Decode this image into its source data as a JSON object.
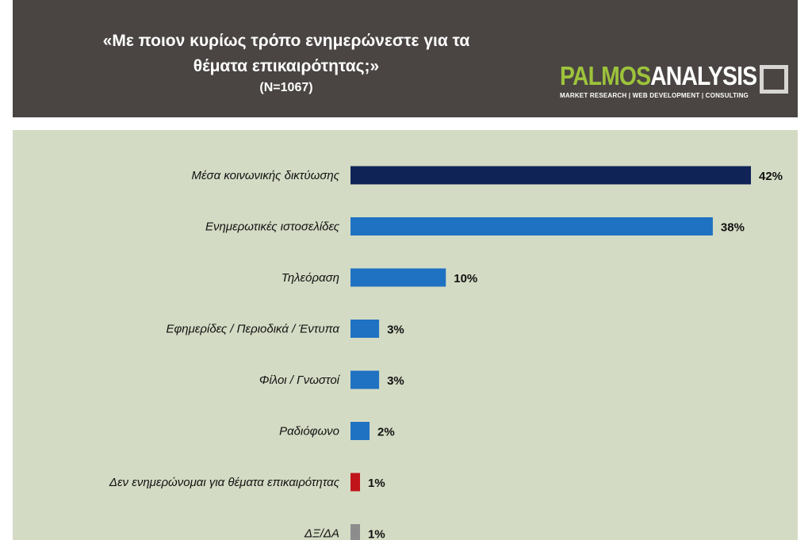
{
  "header": {
    "title_line1": "«Με ποιον κυρίως τρόπο ενημερώνεστε για τα",
    "title_line2": "θέματα επικαιρότητας;»",
    "sample": "(N=1067)"
  },
  "logo": {
    "part1": "PALMOS",
    "part2": "ANALYSIS",
    "tagline": "MARKET RESEARCH | WEB DEVELOPMENT | CONSULTING"
  },
  "chart_data": {
    "type": "bar",
    "orientation": "horizontal",
    "categories": [
      "Μέσα κοινωνικής δικτύωσης",
      "Ενημερωτικές ιστοσελίδες",
      "Τηλεόραση",
      "Εφημερίδες / Περιοδικά / Έντυπα",
      "Φίλοι / Γνωστοί",
      "Ραδιόφωνο",
      "Δεν ενημερώνομαι για θέματα επικαιρότητας",
      "ΔΞ/ΔΑ"
    ],
    "values": [
      42,
      38,
      10,
      3,
      3,
      2,
      1,
      1
    ],
    "value_labels": [
      "42%",
      "38%",
      "10%",
      "3%",
      "3%",
      "2%",
      "1%",
      "1%"
    ],
    "colors": [
      "#0f2357",
      "#1f72c2",
      "#1f72c2",
      "#1f72c2",
      "#1f72c2",
      "#1f72c2",
      "#c0141a",
      "#8c8c8c"
    ],
    "xlim": [
      0,
      42
    ],
    "grid": false,
    "legend": "none"
  }
}
